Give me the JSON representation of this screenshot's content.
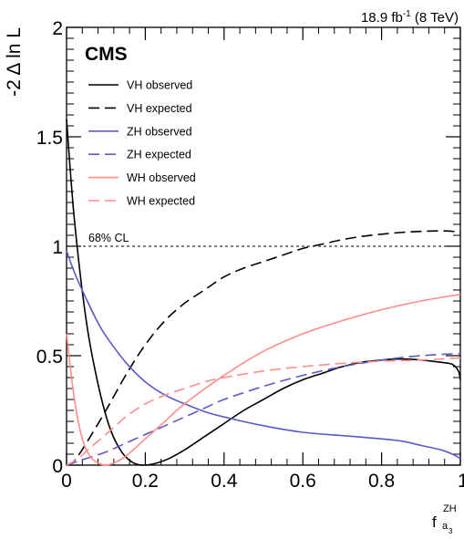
{
  "chart_data": {
    "type": "line",
    "title": "",
    "lumi_label": {
      "main": "18.9 fb",
      "sup": "-1",
      "rest": " (8 TeV)"
    },
    "experiment": "CMS",
    "xlabel": {
      "main": "f",
      "sup": "ZH",
      "sub": "a",
      "subsub": "3"
    },
    "ylabel": "-2 Δ ln L",
    "xlim": [
      0,
      1
    ],
    "ylim": [
      0,
      2
    ],
    "x_ticks": [
      "0",
      "0.2",
      "0.4",
      "0.6",
      "0.8",
      "1"
    ],
    "y_ticks": [
      "0",
      "0.5",
      "1",
      "1.5",
      "2"
    ],
    "x_tick_values": [
      0,
      0.2,
      0.4,
      0.6,
      0.8,
      1
    ],
    "y_tick_values": [
      0,
      0.5,
      1,
      1.5,
      2
    ],
    "reference_line": {
      "y": 1.0,
      "label": "68% CL",
      "style": "dotted"
    },
    "legend_position": "top-left",
    "grid": false,
    "series": [
      {
        "name": "VH observed",
        "color": "#000000",
        "dash": "solid",
        "x": [
          0,
          0.02,
          0.05,
          0.08,
          0.11,
          0.14,
          0.17,
          0.2,
          0.23,
          0.26,
          0.3,
          0.35,
          0.4,
          0.45,
          0.5,
          0.55,
          0.6,
          0.65,
          0.7,
          0.75,
          0.8,
          0.85,
          0.9,
          0.95,
          0.98,
          0.995,
          1.0
        ],
        "y": [
          1.58,
          1.12,
          0.66,
          0.37,
          0.17,
          0.06,
          0.01,
          0.0,
          0.01,
          0.03,
          0.07,
          0.13,
          0.19,
          0.25,
          0.3,
          0.35,
          0.39,
          0.42,
          0.45,
          0.47,
          0.48,
          0.485,
          0.48,
          0.47,
          0.46,
          0.43,
          0.39
        ]
      },
      {
        "name": "VH expected",
        "color": "#000000",
        "dash": "long-dash",
        "x": [
          0,
          0.02,
          0.05,
          0.1,
          0.15,
          0.2,
          0.25,
          0.3,
          0.35,
          0.4,
          0.45,
          0.5,
          0.55,
          0.6,
          0.65,
          0.7,
          0.75,
          0.8,
          0.85,
          0.9,
          0.95,
          0.98,
          1.0
        ],
        "y": [
          0.0,
          0.02,
          0.1,
          0.25,
          0.41,
          0.55,
          0.66,
          0.74,
          0.8,
          0.86,
          0.9,
          0.93,
          0.96,
          0.99,
          1.01,
          1.03,
          1.045,
          1.055,
          1.063,
          1.068,
          1.07,
          1.068,
          1.06
        ]
      },
      {
        "name": "ZH observed",
        "color": "#5a5ac8",
        "dash": "solid",
        "x": [
          0,
          0.02,
          0.05,
          0.08,
          0.1,
          0.15,
          0.2,
          0.25,
          0.3,
          0.35,
          0.4,
          0.5,
          0.6,
          0.7,
          0.8,
          0.85,
          0.9,
          0.95,
          0.98,
          1.0
        ],
        "y": [
          0.98,
          0.88,
          0.76,
          0.65,
          0.59,
          0.47,
          0.38,
          0.32,
          0.28,
          0.245,
          0.22,
          0.18,
          0.15,
          0.135,
          0.12,
          0.11,
          0.09,
          0.07,
          0.05,
          0.03
        ]
      },
      {
        "name": "ZH expected",
        "color": "#5a5ac8",
        "dash": "long-dash",
        "x": [
          0,
          0.05,
          0.1,
          0.15,
          0.2,
          0.25,
          0.3,
          0.35,
          0.4,
          0.5,
          0.6,
          0.7,
          0.8,
          0.9,
          1.0
        ],
        "y": [
          0.0,
          0.03,
          0.06,
          0.1,
          0.14,
          0.18,
          0.22,
          0.26,
          0.3,
          0.36,
          0.41,
          0.45,
          0.48,
          0.5,
          0.51
        ]
      },
      {
        "name": "WH observed",
        "color": "#ff8c8c",
        "dash": "solid",
        "x": [
          0,
          0.02,
          0.04,
          0.06,
          0.08,
          0.1,
          0.12,
          0.15,
          0.2,
          0.25,
          0.3,
          0.4,
          0.5,
          0.6,
          0.7,
          0.8,
          0.9,
          1.0
        ],
        "y": [
          0.6,
          0.3,
          0.12,
          0.04,
          0.01,
          0.0,
          0.01,
          0.04,
          0.12,
          0.2,
          0.28,
          0.41,
          0.52,
          0.6,
          0.66,
          0.71,
          0.75,
          0.78
        ]
      },
      {
        "name": "WH expected",
        "color": "#ff8c8c",
        "dash": "long-dash",
        "x": [
          0,
          0.03,
          0.06,
          0.1,
          0.15,
          0.2,
          0.25,
          0.3,
          0.35,
          0.4,
          0.5,
          0.6,
          0.7,
          0.8,
          0.9,
          1.0
        ],
        "y": [
          0.0,
          0.03,
          0.08,
          0.14,
          0.22,
          0.28,
          0.32,
          0.35,
          0.38,
          0.4,
          0.43,
          0.45,
          0.465,
          0.475,
          0.48,
          0.49
        ]
      }
    ]
  }
}
